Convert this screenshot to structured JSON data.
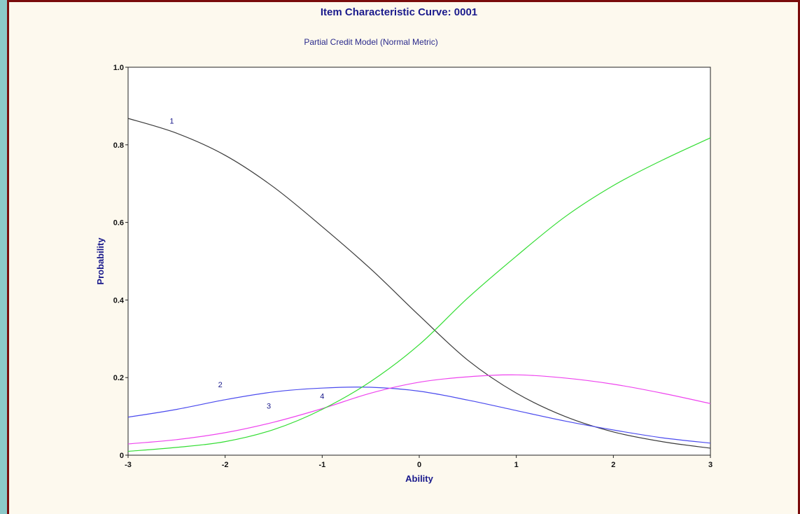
{
  "chart_data": {
    "type": "line",
    "title": "Item Characteristic Curve: 0001",
    "subtitle": "Partial Credit Model (Normal Metric)",
    "xlabel": "Ability",
    "ylabel": "Probability",
    "xlim": [
      -3,
      3
    ],
    "ylim": [
      0,
      1.0
    ],
    "x_ticks": [
      -3,
      -2,
      -1,
      0,
      1,
      2,
      3
    ],
    "y_ticks": [
      0,
      0.2,
      0.4,
      0.6,
      0.8,
      1.0
    ],
    "y_tick_labels": [
      "0",
      "0.2",
      "0.4",
      "0.6",
      "0.8",
      "1.0"
    ],
    "grid": false,
    "x": [
      -3,
      -2.5,
      -2,
      -1.5,
      -1,
      -0.5,
      0,
      0.5,
      1,
      1.5,
      2,
      2.5,
      3
    ],
    "series": [
      {
        "label": "1",
        "color": "#3a3a3a",
        "values": [
          0.868,
          0.83,
          0.773,
          0.691,
          0.589,
          0.48,
          0.36,
          0.245,
          0.16,
          0.1,
          0.06,
          0.035,
          0.018
        ]
      },
      {
        "label": "2",
        "color": "#4a4aee",
        "values": [
          0.098,
          0.118,
          0.143,
          0.163,
          0.173,
          0.175,
          0.165,
          0.142,
          0.115,
          0.088,
          0.065,
          0.045,
          0.031
        ]
      },
      {
        "label": "3",
        "color": "#ee44ee",
        "values": [
          0.029,
          0.04,
          0.058,
          0.085,
          0.12,
          0.16,
          0.188,
          0.202,
          0.207,
          0.199,
          0.183,
          0.16,
          0.133
        ]
      },
      {
        "label": "4",
        "color": "#33dd33",
        "values": [
          0.01,
          0.02,
          0.035,
          0.066,
          0.118,
          0.19,
          0.285,
          0.405,
          0.513,
          0.614,
          0.695,
          0.76,
          0.818
        ]
      }
    ],
    "curve_labels": [
      {
        "text": "1",
        "x": -2.55,
        "y": 0.855
      },
      {
        "text": "2",
        "x": -2.05,
        "y": 0.175
      },
      {
        "text": "3",
        "x": -1.55,
        "y": 0.12
      },
      {
        "text": "4",
        "x": -1.0,
        "y": 0.145
      }
    ]
  }
}
